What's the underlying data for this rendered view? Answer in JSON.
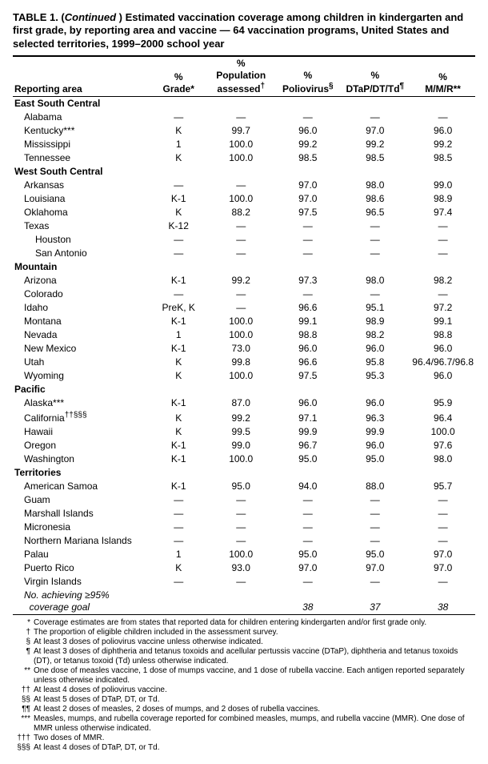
{
  "title_html": "TABLE 1. (<span class='ital'>Continued</span> ) Estimated vaccination coverage among children in kindergarten and first grade, by reporting area and vaccine — 64 vaccination programs, United States and selected territories, 1999–2000 school year",
  "columns": [
    "Reporting area",
    "%<br>Grade*",
    "%<br>Population<br>assessed<sup>†</sup>",
    "%<br>Poliovirus<sup>§</sup>",
    "%<br>DTaP/DT/Td<sup>¶</sup>",
    "%<br>M/M/R**"
  ],
  "groups": [
    {
      "region": "East South Central",
      "rows": [
        {
          "area": "Alabama",
          "grade": "—",
          "pop": "—",
          "polio": "—",
          "dtap": "—",
          "mmr": "—"
        },
        {
          "area": "Kentucky***",
          "grade": "K",
          "pop": "99.7",
          "polio": "96.0",
          "dtap": "97.0",
          "mmr": "96.0"
        },
        {
          "area": "Mississippi",
          "grade": "1",
          "pop": "100.0",
          "polio": "99.2",
          "dtap": "99.2",
          "mmr": "99.2"
        },
        {
          "area": "Tennessee",
          "grade": "K",
          "pop": "100.0",
          "polio": "98.5",
          "dtap": "98.5",
          "mmr": "98.5"
        }
      ]
    },
    {
      "region": "West South Central",
      "rows": [
        {
          "area": "Arkansas",
          "grade": "—",
          "pop": "—",
          "polio": "97.0",
          "dtap": "98.0",
          "mmr": "99.0"
        },
        {
          "area": "Louisiana",
          "grade": "K-1",
          "pop": "100.0",
          "polio": "97.0",
          "dtap": "98.6",
          "mmr": "98.9"
        },
        {
          "area": "Oklahoma",
          "grade": "K",
          "pop": "88.2",
          "polio": "97.5",
          "dtap": "96.5",
          "mmr": "97.4"
        },
        {
          "area": "Texas",
          "grade": "K-12",
          "pop": "—",
          "polio": "—",
          "dtap": "—",
          "mmr": "—"
        },
        {
          "area": "Houston",
          "indent": 2,
          "grade": "—",
          "pop": "—",
          "polio": "—",
          "dtap": "—",
          "mmr": "—"
        },
        {
          "area": "San Antonio",
          "indent": 2,
          "grade": "—",
          "pop": "—",
          "polio": "—",
          "dtap": "—",
          "mmr": "—"
        }
      ]
    },
    {
      "region": "Mountain",
      "rows": [
        {
          "area": "Arizona",
          "grade": "K-1",
          "pop": "99.2",
          "polio": "97.3",
          "dtap": "98.0",
          "mmr": "98.2"
        },
        {
          "area": "Colorado",
          "grade": "—",
          "pop": "—",
          "polio": "—",
          "dtap": "—",
          "mmr": "—"
        },
        {
          "area": "Idaho",
          "grade": "PreK, K",
          "pop": "—",
          "polio": "96.6",
          "dtap": "95.1",
          "mmr": "97.2"
        },
        {
          "area": "Montana",
          "grade": "K-1",
          "pop": "100.0",
          "polio": "99.1",
          "dtap": "98.9",
          "mmr": "99.1"
        },
        {
          "area": "Nevada",
          "grade": "1",
          "pop": "100.0",
          "polio": "98.8",
          "dtap": "98.2",
          "mmr": "98.8"
        },
        {
          "area": "New Mexico",
          "grade": "K-1",
          "pop": "73.0",
          "polio": "96.0",
          "dtap": "96.0",
          "mmr": "96.0"
        },
        {
          "area": "Utah",
          "grade": "K",
          "pop": "99.8",
          "polio": "96.6",
          "dtap": "95.8",
          "mmr": "96.4/96.7/96.8"
        },
        {
          "area": "Wyoming",
          "grade": "K",
          "pop": "100.0",
          "polio": "97.5",
          "dtap": "95.3",
          "mmr": "96.0"
        }
      ]
    },
    {
      "region": "Pacific",
      "rows": [
        {
          "area": "Alaska***",
          "grade": "K-1",
          "pop": "87.0",
          "polio": "96.0",
          "dtap": "96.0",
          "mmr": "95.9"
        },
        {
          "area": "California<sup>††§§§</sup>",
          "grade": "K",
          "pop": "99.2",
          "polio": "97.1",
          "dtap": "96.3",
          "mmr": "96.4"
        },
        {
          "area": "Hawaii",
          "grade": "K",
          "pop": "99.5",
          "polio": "99.9",
          "dtap": "99.9",
          "mmr": "100.0"
        },
        {
          "area": "Oregon",
          "grade": "K-1",
          "pop": "99.0",
          "polio": "96.7",
          "dtap": "96.0",
          "mmr": "97.6"
        },
        {
          "area": "Washington",
          "grade": "K-1",
          "pop": "100.0",
          "polio": "95.0",
          "dtap": "95.0",
          "mmr": "98.0"
        }
      ]
    },
    {
      "region": "Territories",
      "rows": [
        {
          "area": "American Samoa",
          "grade": "K-1",
          "pop": "95.0",
          "polio": "94.0",
          "dtap": "88.0",
          "mmr": "95.7"
        },
        {
          "area": "Guam",
          "grade": "—",
          "pop": "—",
          "polio": "—",
          "dtap": "—",
          "mmr": "—"
        },
        {
          "area": "Marshall Islands",
          "grade": "—",
          "pop": "—",
          "polio": "—",
          "dtap": "—",
          "mmr": "—"
        },
        {
          "area": "Micronesia",
          "grade": "—",
          "pop": "—",
          "polio": "—",
          "dtap": "—",
          "mmr": "—"
        },
        {
          "area": "Northern Mariana Islands",
          "grade": "—",
          "pop": "—",
          "polio": "—",
          "dtap": "—",
          "mmr": "—"
        },
        {
          "area": "Palau",
          "grade": "1",
          "pop": "100.0",
          "polio": "95.0",
          "dtap": "95.0",
          "mmr": "97.0"
        },
        {
          "area": "Puerto Rico",
          "grade": "K",
          "pop": "93.0",
          "polio": "97.0",
          "dtap": "97.0",
          "mmr": "97.0"
        },
        {
          "area": "Virgin Islands",
          "grade": "—",
          "pop": "—",
          "polio": "—",
          "dtap": "—",
          "mmr": "—"
        }
      ]
    }
  ],
  "summary": {
    "label_html": "No. achieving <span class='ge'>&ge;</span>95%<br>&nbsp;&nbsp;coverage goal",
    "polio": "38",
    "dtap": "37",
    "mmr": "38"
  },
  "footnotes": [
    {
      "sym": "*",
      "txt": "Coverage estimates are from states that reported data for children entering kindergarten and/or first grade only."
    },
    {
      "sym": "†",
      "txt": "The proportion of eligible children included in the assessment survey."
    },
    {
      "sym": "§",
      "txt": "At least 3 doses of poliovirus vaccine unless otherwise indicated."
    },
    {
      "sym": "¶",
      "txt": "At least 3 doses of diphtheria and tetanus toxoids and acellular pertussis vaccine (DTaP), diphtheria and tetanus toxoids (DT), or tetanus toxoid (Td) unless otherwise indicated."
    },
    {
      "sym": "**",
      "txt": "One dose of measles vaccine, 1 dose of mumps vaccine, and 1 dose of rubella vaccine. Each antigen reported separately unless otherwise indicated."
    },
    {
      "sym": "††",
      "txt": "At least 4 doses of poliovirus vaccine."
    },
    {
      "sym": "§§",
      "txt": "At least 5 doses of DTaP, DT, or Td."
    },
    {
      "sym": "¶¶",
      "txt": "At least 2 doses of measles, 2 doses of mumps, and 2 doses of rubella vaccines."
    },
    {
      "sym": "***",
      "txt": "Measles, mumps, and rubella coverage reported for combined measles, mumps, and rubella vaccine (MMR). One dose of MMR unless otherwise indicated."
    },
    {
      "sym": "†††",
      "txt": "Two doses of MMR."
    },
    {
      "sym": "§§§",
      "txt": "At least 4 doses of DTaP, DT, or Td."
    }
  ]
}
